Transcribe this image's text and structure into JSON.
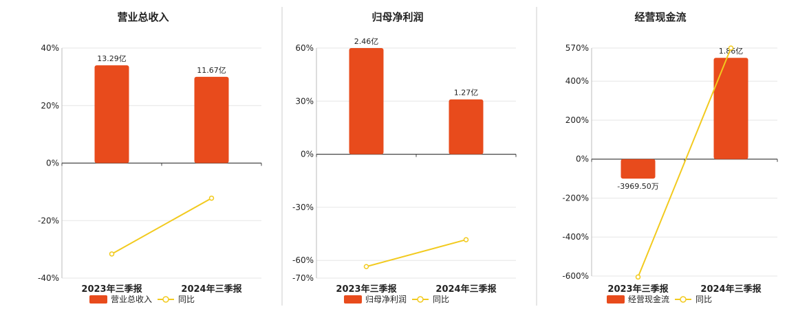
{
  "colors": {
    "bar": "#E84B1C",
    "line": "#F2CA1E",
    "grid": "#e6e6e6",
    "axis": "#444444",
    "divider": "#cccccc"
  },
  "chart_data": [
    {
      "type": "bar",
      "title": "营业总收入",
      "categories": [
        "2023年三季报",
        "2024年三季报"
      ],
      "ylim": [
        -40,
        40
      ],
      "yticks": [
        40,
        20,
        0,
        -20,
        -40
      ],
      "ytick_labels": [
        "40%",
        "20%",
        "0%",
        "-20%",
        "-40%"
      ],
      "grid": true,
      "legend_position": "bottom",
      "series": [
        {
          "name": "营业总收入",
          "kind": "bar",
          "values": [
            34,
            30
          ],
          "labels": [
            "13.29亿",
            "11.67亿"
          ]
        },
        {
          "name": "同比",
          "kind": "line",
          "values": [
            -31.6,
            -12.2
          ]
        }
      ]
    },
    {
      "type": "bar",
      "title": "归母净利润",
      "categories": [
        "2023年三季报",
        "2024年三季报"
      ],
      "ylim": [
        -70,
        60
      ],
      "yticks": [
        60,
        30,
        0,
        -30,
        -60,
        -70
      ],
      "ytick_labels": [
        "60%",
        "30%",
        "0%",
        "-30%",
        "-60%",
        "-70%"
      ],
      "grid": true,
      "legend_position": "bottom",
      "series": [
        {
          "name": "归母净利润",
          "kind": "bar",
          "values": [
            60,
            31
          ],
          "labels": [
            "2.46亿",
            "1.27亿"
          ]
        },
        {
          "name": "同比",
          "kind": "line",
          "values": [
            -63.5,
            -48.3
          ]
        }
      ]
    },
    {
      "type": "bar",
      "title": "经营现金流",
      "categories": [
        "2023年三季报",
        "2024年三季报"
      ],
      "ylim": [
        -600,
        570
      ],
      "yticks": [
        570,
        400,
        200,
        0,
        -200,
        -400,
        -600
      ],
      "ytick_labels": [
        "570%",
        "400%",
        "200%",
        "0%",
        "-200%",
        "-400%",
        "-600%"
      ],
      "grid": true,
      "legend_position": "bottom",
      "series": [
        {
          "name": "经营现金流",
          "kind": "bar",
          "values": [
            -100,
            520
          ],
          "labels": [
            "-3969.50万",
            "1.86亿"
          ]
        },
        {
          "name": "同比",
          "kind": "line",
          "values": [
            -605,
            570
          ]
        }
      ]
    }
  ]
}
